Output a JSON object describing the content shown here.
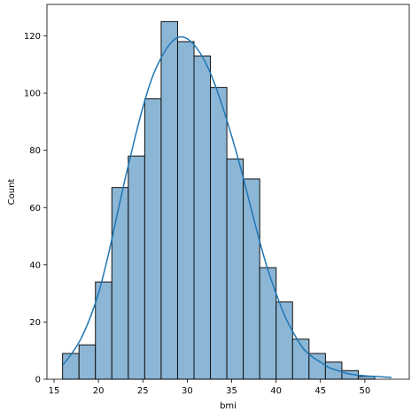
{
  "chart_data": {
    "type": "bar",
    "subtype": "histogram-with-kde",
    "title": "",
    "xlabel": "bmi",
    "ylabel": "Count",
    "xlim": [
      14.2,
      55.0
    ],
    "ylim": [
      0,
      131
    ],
    "xticks": [
      15,
      20,
      25,
      30,
      35,
      40,
      45,
      50
    ],
    "yticks": [
      0,
      20,
      40,
      60,
      80,
      100,
      120
    ],
    "grid": false,
    "legend": "none",
    "bins": [
      {
        "x0": 15.96,
        "x1": 17.81,
        "count": 9
      },
      {
        "x0": 17.81,
        "x1": 19.66,
        "count": 12
      },
      {
        "x0": 19.66,
        "x1": 21.51,
        "count": 34
      },
      {
        "x0": 21.51,
        "x1": 23.36,
        "count": 67
      },
      {
        "x0": 23.36,
        "x1": 25.21,
        "count": 78
      },
      {
        "x0": 25.21,
        "x1": 27.06,
        "count": 98
      },
      {
        "x0": 27.06,
        "x1": 28.91,
        "count": 125
      },
      {
        "x0": 28.91,
        "x1": 30.76,
        "count": 118
      },
      {
        "x0": 30.76,
        "x1": 32.61,
        "count": 113
      },
      {
        "x0": 32.61,
        "x1": 34.46,
        "count": 102
      },
      {
        "x0": 34.46,
        "x1": 36.31,
        "count": 77
      },
      {
        "x0": 36.31,
        "x1": 38.16,
        "count": 70
      },
      {
        "x0": 38.16,
        "x1": 40.01,
        "count": 39
      },
      {
        "x0": 40.01,
        "x1": 41.86,
        "count": 27
      },
      {
        "x0": 41.86,
        "x1": 43.71,
        "count": 14
      },
      {
        "x0": 43.71,
        "x1": 45.56,
        "count": 9
      },
      {
        "x0": 45.56,
        "x1": 47.41,
        "count": 6
      },
      {
        "x0": 47.41,
        "x1": 49.26,
        "count": 3
      },
      {
        "x0": 49.26,
        "x1": 51.11,
        "count": 1
      },
      {
        "x0": 51.11,
        "x1": 52.96,
        "count": 0
      }
    ],
    "kde": {
      "x": [
        16.0,
        17.0,
        18.0,
        19.0,
        20.0,
        21.0,
        22.0,
        23.0,
        24.0,
        25.0,
        26.0,
        27.0,
        28.0,
        29.0,
        30.0,
        31.0,
        32.0,
        33.0,
        34.0,
        35.0,
        36.0,
        37.0,
        38.0,
        39.0,
        40.0,
        41.0,
        42.0,
        43.0,
        44.0,
        45.0,
        46.0,
        47.0,
        48.0,
        49.0,
        50.0,
        51.0,
        52.0,
        53.0
      ],
      "y": [
        5,
        9,
        14,
        21,
        30,
        42,
        56,
        70,
        83,
        95,
        105,
        112,
        117,
        119.5,
        119,
        116,
        111,
        104,
        95,
        85,
        74,
        62,
        50,
        39,
        30,
        22,
        16,
        11,
        8,
        6,
        4,
        3,
        2,
        1.5,
        1.2,
        1.0,
        0.8,
        0.6
      ]
    },
    "colors": {
      "bar_fill": "#8cb6d6",
      "bar_edge": "#111111",
      "kde_line": "#1f77b4"
    }
  }
}
